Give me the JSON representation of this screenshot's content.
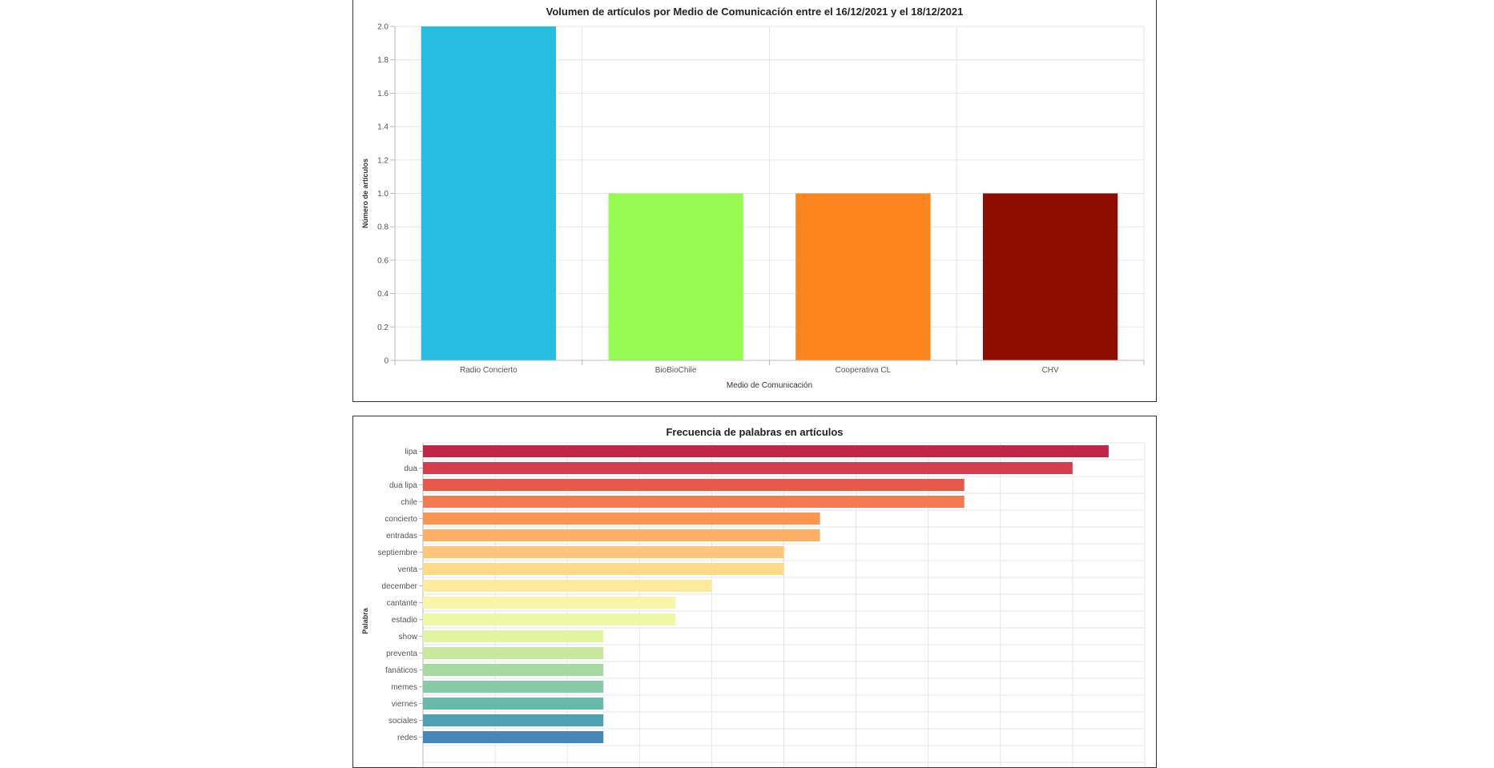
{
  "chart_data": [
    {
      "type": "bar",
      "title": "Volumen de artículos por Medio de Comunicación entre el 16/12/2021 y el 18/12/2021",
      "xlabel": "Medio de Comunicación",
      "ylabel": "Número de artículos",
      "ylim": [
        0,
        2.0
      ],
      "yticks": [
        "0",
        "0.2",
        "0.4",
        "0.6",
        "0.8",
        "1.0",
        "1.2",
        "1.4",
        "1.6",
        "1.8",
        "2.0"
      ],
      "categories": [
        "Radio Concierto",
        "BioBioChile",
        "Cooperativa CL",
        "CHV"
      ],
      "values": [
        2,
        1,
        1,
        1
      ],
      "colors": [
        "#27bce2",
        "#96fa50",
        "#fe851e",
        "#8f0c00"
      ],
      "grid": true
    },
    {
      "type": "bar",
      "orientation": "horizontal",
      "title": "Frecuencia de palabras en artículos",
      "ylabel": "Palabra",
      "xlim": [
        0,
        10
      ],
      "categories": [
        "lipa",
        "dua",
        "dua lipa",
        "chile",
        "concierto",
        "entradas",
        "septiembre",
        "venta",
        "december",
        "cantante",
        "estadio",
        "show",
        "preventa",
        "fanáticos",
        "memes",
        "viernes",
        "sociales",
        "redes"
      ],
      "values": [
        9.5,
        9,
        7.5,
        7.5,
        5.5,
        5.5,
        5,
        5,
        4,
        3.5,
        3.5,
        2.5,
        2.5,
        2.5,
        2.5,
        2.5,
        2.5,
        2.5
      ],
      "colors": [
        "#c0254a",
        "#d33f4e",
        "#e75a4a",
        "#f27a4e",
        "#f9954e",
        "#fcb065",
        "#fec67b",
        "#fdd98a",
        "#fbeb9b",
        "#f8f6a8",
        "#eff8a7",
        "#e1f4a2",
        "#c7e89d",
        "#a5dba0",
        "#86cba6",
        "#67b9a8",
        "#4ba0b1",
        "#4586bb"
      ],
      "grid": true
    }
  ]
}
